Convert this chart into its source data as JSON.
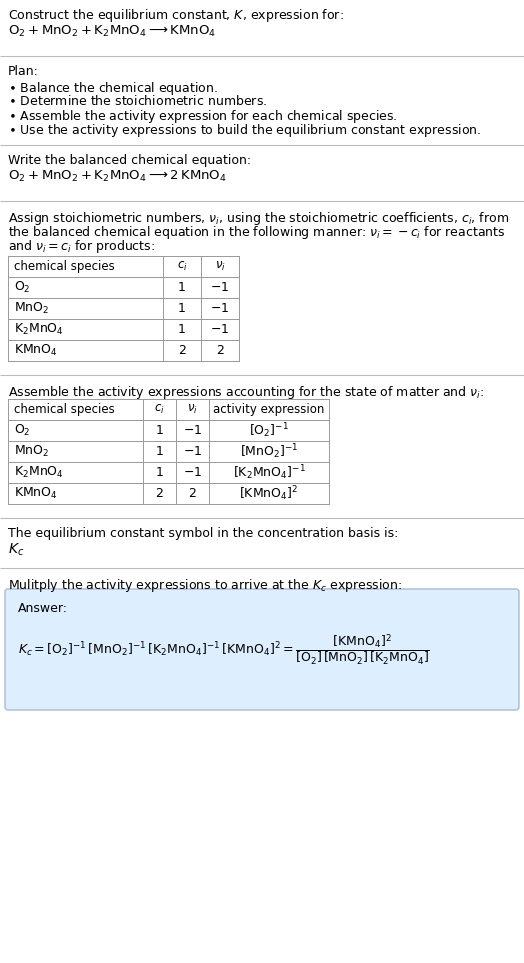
{
  "title_line1": "Construct the equilibrium constant, $K$, expression for:",
  "title_line2": "$\\mathrm{O_2 + MnO_2 + K_2MnO_4 \\longrightarrow KMnO_4}$",
  "plan_header": "Plan:",
  "plan_items": [
    "$\\bullet$ Balance the chemical equation.",
    "$\\bullet$ Determine the stoichiometric numbers.",
    "$\\bullet$ Assemble the activity expression for each chemical species.",
    "$\\bullet$ Use the activity expressions to build the equilibrium constant expression."
  ],
  "balanced_header": "Write the balanced chemical equation:",
  "balanced_eq": "$\\mathrm{O_2 + MnO_2 + K_2MnO_4 \\longrightarrow 2\\,KMnO_4}$",
  "stoich_intro_parts": [
    "Assign stoichiometric numbers, $\\nu_i$, using the stoichiometric coefficients, $c_i$, from",
    "the balanced chemical equation in the following manner: $\\nu_i = -c_i$ for reactants",
    "and $\\nu_i = c_i$ for products:"
  ],
  "table1_headers": [
    "chemical species",
    "$c_i$",
    "$\\nu_i$"
  ],
  "table1_rows": [
    [
      "$\\mathrm{O_2}$",
      "1",
      "$-1$"
    ],
    [
      "$\\mathrm{MnO_2}$",
      "1",
      "$-1$"
    ],
    [
      "$\\mathrm{K_2MnO_4}$",
      "1",
      "$-1$"
    ],
    [
      "$\\mathrm{KMnO_4}$",
      "2",
      "2"
    ]
  ],
  "activity_intro": "Assemble the activity expressions accounting for the state of matter and $\\nu_i$:",
  "table2_headers": [
    "chemical species",
    "$c_i$",
    "$\\nu_i$",
    "activity expression"
  ],
  "table2_rows": [
    [
      "$\\mathrm{O_2}$",
      "1",
      "$-1$",
      "$[\\mathrm{O_2}]^{-1}$"
    ],
    [
      "$\\mathrm{MnO_2}$",
      "1",
      "$-1$",
      "$[\\mathrm{MnO_2}]^{-1}$"
    ],
    [
      "$\\mathrm{K_2MnO_4}$",
      "1",
      "$-1$",
      "$[\\mathrm{K_2MnO_4}]^{-1}$"
    ],
    [
      "$\\mathrm{KMnO_4}$",
      "2",
      "2",
      "$[\\mathrm{KMnO_4}]^{2}$"
    ]
  ],
  "kc_intro": "The equilibrium constant symbol in the concentration basis is:",
  "kc_symbol": "$K_c$",
  "multiply_intro": "Mulitply the activity expressions to arrive at the $K_c$ expression:",
  "answer_label": "Answer:",
  "answer_eq_line1": "$K_c = [\\mathrm{O_2}]^{-1}\\,[\\mathrm{MnO_2}]^{-1}\\,[\\mathrm{K_2MnO_4}]^{-1}\\,[\\mathrm{KMnO_4}]^{2} = \\dfrac{[\\mathrm{KMnO_4}]^{2}}{[\\mathrm{O_2}]\\,[\\mathrm{MnO_2}]\\,[\\mathrm{K_2MnO_4}]}$",
  "bg_color": "#ffffff",
  "answer_box_color": "#ddeeff",
  "table_border_color": "#999999",
  "divider_color": "#bbbbbb",
  "text_color": "#000000",
  "font_size": 9.0
}
